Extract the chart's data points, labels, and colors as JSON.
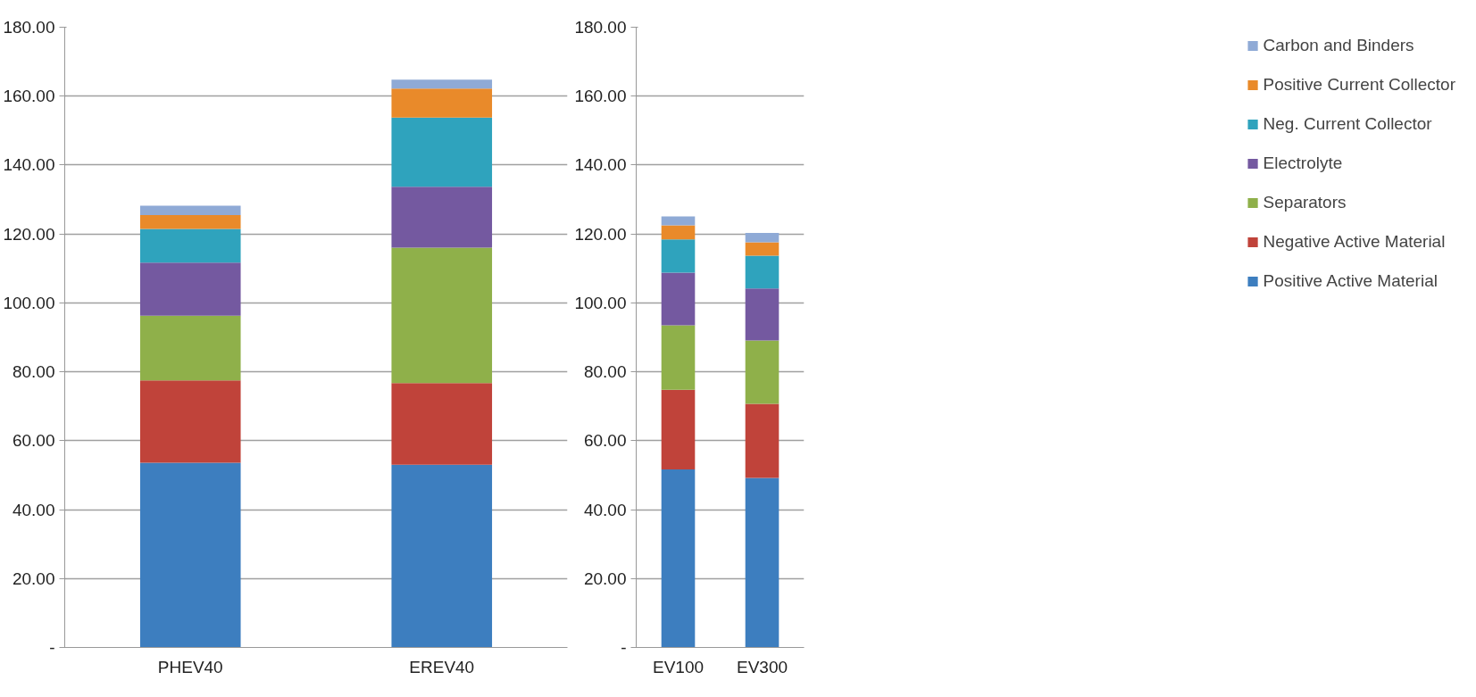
{
  "chart_data": [
    {
      "type": "bar",
      "stacked": true,
      "categories": [
        "PHEV40",
        "EREV40"
      ],
      "ylim": [
        0,
        180
      ],
      "yticks": [
        {
          "value": 0,
          "label": "-"
        },
        {
          "value": 20,
          "label": "20.00"
        },
        {
          "value": 40,
          "label": "40.00"
        },
        {
          "value": 60,
          "label": "60.00"
        },
        {
          "value": 80,
          "label": "80.00"
        },
        {
          "value": 100,
          "label": "100.00"
        },
        {
          "value": 120,
          "label": "120.00"
        },
        {
          "value": 140,
          "label": "140.00"
        },
        {
          "value": 160,
          "label": "160.00"
        },
        {
          "value": 180,
          "label": "180.00"
        }
      ],
      "grid": "y",
      "legend": false,
      "series": [
        {
          "color": "#3d7ebf",
          "values": [
            53.6,
            53.0
          ]
        },
        {
          "color": "#c0433a",
          "values": [
            23.9,
            23.7
          ]
        },
        {
          "color": "#8fb04a",
          "values": [
            18.8,
            39.3
          ]
        },
        {
          "color": "#7459a0",
          "values": [
            15.4,
            17.7
          ]
        },
        {
          "color": "#2fa3bd",
          "values": [
            9.8,
            20.1
          ]
        },
        {
          "color": "#e98a2a",
          "values": [
            4.0,
            8.4
          ]
        },
        {
          "color": "#8faad6",
          "values": [
            2.7,
            2.6
          ]
        }
      ]
    },
    {
      "type": "bar",
      "stacked": true,
      "categories": [
        "EV100",
        "EV300"
      ],
      "ylim": [
        0,
        180
      ],
      "yticks": [
        {
          "value": 0,
          "label": "-"
        },
        {
          "value": 20,
          "label": "20.00"
        },
        {
          "value": 40,
          "label": "40.00"
        },
        {
          "value": 60,
          "label": "60.00"
        },
        {
          "value": 80,
          "label": "80.00"
        },
        {
          "value": 100,
          "label": "100.00"
        },
        {
          "value": 120,
          "label": "120.00"
        },
        {
          "value": 140,
          "label": "140.00"
        },
        {
          "value": 160,
          "label": "160.00"
        },
        {
          "value": 180,
          "label": "180.00"
        }
      ],
      "grid": "y",
      "legend": "right",
      "series": [
        {
          "name": "Positive Active Material",
          "color": "#3d7ebf",
          "values": [
            51.7,
            49.2
          ]
        },
        {
          "name": "Negative Active Material",
          "color": "#c0433a",
          "values": [
            23.1,
            21.5
          ]
        },
        {
          "name": "Separators",
          "color": "#8fb04a",
          "values": [
            18.7,
            18.4
          ]
        },
        {
          "name": "Electrolyte",
          "color": "#7459a0",
          "values": [
            15.3,
            15.1
          ]
        },
        {
          "name": "Neg. Current Collector",
          "color": "#2fa3bd",
          "values": [
            9.6,
            9.5
          ]
        },
        {
          "name": "Positive Current Collector",
          "color": "#e98a2a",
          "values": [
            4.1,
            3.9
          ]
        },
        {
          "name": "Carbon and Binders",
          "color": "#8faad6",
          "values": [
            2.6,
            2.7
          ]
        }
      ]
    }
  ]
}
